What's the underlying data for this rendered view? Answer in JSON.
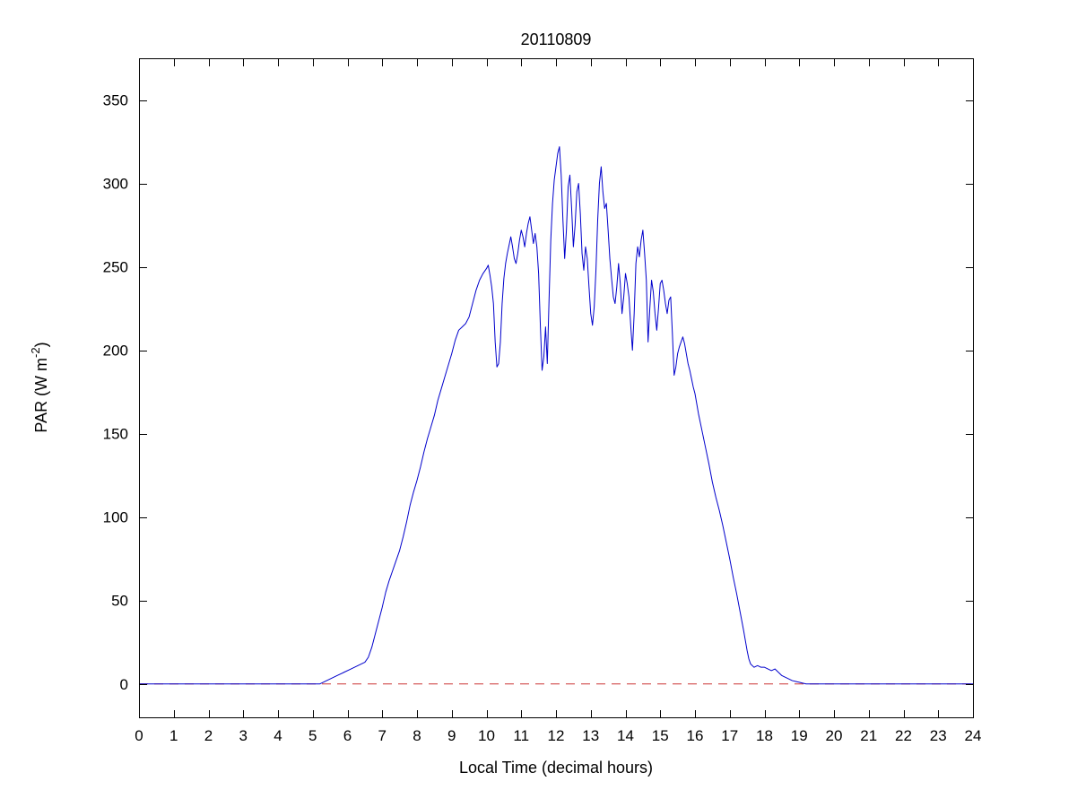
{
  "figure": {
    "title": "20110809",
    "xlabel": "Local Time (decimal hours)",
    "ylabel_prefix": "PAR (W m",
    "ylabel_sup": "-2",
    "ylabel_suffix": ")",
    "background": "#ffffff",
    "axis_color": "#000000"
  },
  "chart_data": {
    "type": "line",
    "title": "20110809",
    "xlabel": "Local Time (decimal hours)",
    "ylabel": "PAR (W m^-2)",
    "xlim": [
      0,
      24
    ],
    "ylim": [
      -20,
      375
    ],
    "x_ticks": [
      0,
      1,
      2,
      3,
      4,
      5,
      6,
      7,
      8,
      9,
      10,
      11,
      12,
      13,
      14,
      15,
      16,
      17,
      18,
      19,
      20,
      21,
      22,
      23,
      24
    ],
    "y_ticks": [
      0,
      50,
      100,
      150,
      200,
      250,
      300,
      350
    ],
    "grid": false,
    "legend": "none",
    "series": [
      {
        "name": "zero-reference",
        "color": "#cc3333",
        "style": "dashed",
        "points": [
          [
            0,
            0
          ],
          [
            24,
            0
          ]
        ]
      },
      {
        "name": "PAR",
        "color": "#0000cc",
        "style": "solid",
        "points": [
          [
            0,
            0
          ],
          [
            0.5,
            0
          ],
          [
            1,
            0
          ],
          [
            1.5,
            0
          ],
          [
            2,
            0
          ],
          [
            2.5,
            0
          ],
          [
            3,
            0
          ],
          [
            3.5,
            0
          ],
          [
            4,
            0
          ],
          [
            4.5,
            0
          ],
          [
            5,
            0
          ],
          [
            5.2,
            0
          ],
          [
            5.3,
            1
          ],
          [
            5.5,
            3
          ],
          [
            5.7,
            5
          ],
          [
            5.9,
            7
          ],
          [
            6.1,
            9
          ],
          [
            6.3,
            11
          ],
          [
            6.5,
            13
          ],
          [
            6.6,
            16
          ],
          [
            6.7,
            22
          ],
          [
            6.8,
            30
          ],
          [
            6.9,
            38
          ],
          [
            7.0,
            46
          ],
          [
            7.1,
            55
          ],
          [
            7.2,
            62
          ],
          [
            7.3,
            68
          ],
          [
            7.4,
            74
          ],
          [
            7.5,
            80
          ],
          [
            7.6,
            88
          ],
          [
            7.7,
            97
          ],
          [
            7.8,
            107
          ],
          [
            7.9,
            115
          ],
          [
            8.0,
            122
          ],
          [
            8.1,
            130
          ],
          [
            8.2,
            139
          ],
          [
            8.3,
            147
          ],
          [
            8.4,
            154
          ],
          [
            8.5,
            161
          ],
          [
            8.6,
            170
          ],
          [
            8.7,
            177
          ],
          [
            8.8,
            184
          ],
          [
            8.9,
            191
          ],
          [
            9.0,
            198
          ],
          [
            9.1,
            206
          ],
          [
            9.2,
            212
          ],
          [
            9.3,
            214
          ],
          [
            9.4,
            216
          ],
          [
            9.5,
            220
          ],
          [
            9.6,
            228
          ],
          [
            9.7,
            236
          ],
          [
            9.8,
            242
          ],
          [
            9.9,
            246
          ],
          [
            10.0,
            249
          ],
          [
            10.05,
            251
          ],
          [
            10.1,
            245
          ],
          [
            10.15,
            238
          ],
          [
            10.2,
            228
          ],
          [
            10.25,
            205
          ],
          [
            10.3,
            190
          ],
          [
            10.35,
            192
          ],
          [
            10.4,
            205
          ],
          [
            10.45,
            228
          ],
          [
            10.5,
            243
          ],
          [
            10.55,
            252
          ],
          [
            10.6,
            258
          ],
          [
            10.65,
            263
          ],
          [
            10.7,
            268
          ],
          [
            10.75,
            262
          ],
          [
            10.8,
            255
          ],
          [
            10.85,
            252
          ],
          [
            10.9,
            258
          ],
          [
            10.95,
            266
          ],
          [
            11.0,
            272
          ],
          [
            11.05,
            268
          ],
          [
            11.1,
            262
          ],
          [
            11.15,
            270
          ],
          [
            11.2,
            276
          ],
          [
            11.25,
            280
          ],
          [
            11.3,
            272
          ],
          [
            11.35,
            264
          ],
          [
            11.4,
            270
          ],
          [
            11.45,
            262
          ],
          [
            11.5,
            246
          ],
          [
            11.55,
            215
          ],
          [
            11.6,
            188
          ],
          [
            11.65,
            196
          ],
          [
            11.7,
            214
          ],
          [
            11.75,
            192
          ],
          [
            11.8,
            230
          ],
          [
            11.85,
            266
          ],
          [
            11.9,
            288
          ],
          [
            11.95,
            302
          ],
          [
            12.0,
            310
          ],
          [
            12.05,
            318
          ],
          [
            12.1,
            322
          ],
          [
            12.15,
            305
          ],
          [
            12.2,
            278
          ],
          [
            12.25,
            255
          ],
          [
            12.3,
            272
          ],
          [
            12.35,
            298
          ],
          [
            12.4,
            305
          ],
          [
            12.45,
            285
          ],
          [
            12.5,
            262
          ],
          [
            12.55,
            275
          ],
          [
            12.6,
            295
          ],
          [
            12.65,
            300
          ],
          [
            12.7,
            282
          ],
          [
            12.75,
            258
          ],
          [
            12.8,
            248
          ],
          [
            12.85,
            262
          ],
          [
            12.9,
            255
          ],
          [
            12.95,
            238
          ],
          [
            13.0,
            222
          ],
          [
            13.05,
            215
          ],
          [
            13.1,
            226
          ],
          [
            13.15,
            248
          ],
          [
            13.2,
            278
          ],
          [
            13.25,
            300
          ],
          [
            13.3,
            310
          ],
          [
            13.35,
            295
          ],
          [
            13.4,
            285
          ],
          [
            13.45,
            288
          ],
          [
            13.5,
            272
          ],
          [
            13.55,
            255
          ],
          [
            13.6,
            243
          ],
          [
            13.65,
            232
          ],
          [
            13.7,
            228
          ],
          [
            13.75,
            238
          ],
          [
            13.8,
            252
          ],
          [
            13.85,
            240
          ],
          [
            13.9,
            222
          ],
          [
            13.95,
            232
          ],
          [
            14.0,
            246
          ],
          [
            14.05,
            240
          ],
          [
            14.1,
            232
          ],
          [
            14.15,
            215
          ],
          [
            14.2,
            200
          ],
          [
            14.25,
            222
          ],
          [
            14.3,
            252
          ],
          [
            14.35,
            262
          ],
          [
            14.4,
            256
          ],
          [
            14.45,
            266
          ],
          [
            14.5,
            272
          ],
          [
            14.55,
            258
          ],
          [
            14.6,
            242
          ],
          [
            14.65,
            205
          ],
          [
            14.7,
            225
          ],
          [
            14.75,
            242
          ],
          [
            14.8,
            235
          ],
          [
            14.85,
            222
          ],
          [
            14.9,
            212
          ],
          [
            14.95,
            225
          ],
          [
            15.0,
            240
          ],
          [
            15.05,
            242
          ],
          [
            15.1,
            236
          ],
          [
            15.15,
            228
          ],
          [
            15.2,
            222
          ],
          [
            15.25,
            230
          ],
          [
            15.3,
            232
          ],
          [
            15.35,
            210
          ],
          [
            15.4,
            185
          ],
          [
            15.45,
            190
          ],
          [
            15.5,
            198
          ],
          [
            15.55,
            202
          ],
          [
            15.6,
            205
          ],
          [
            15.65,
            208
          ],
          [
            15.7,
            204
          ],
          [
            15.75,
            198
          ],
          [
            15.8,
            192
          ],
          [
            15.85,
            188
          ],
          [
            15.9,
            183
          ],
          [
            15.95,
            178
          ],
          [
            16.0,
            174
          ],
          [
            16.1,
            162
          ],
          [
            16.2,
            152
          ],
          [
            16.3,
            142
          ],
          [
            16.4,
            132
          ],
          [
            16.5,
            121
          ],
          [
            16.6,
            112
          ],
          [
            16.7,
            104
          ],
          [
            16.8,
            95
          ],
          [
            16.9,
            85
          ],
          [
            17.0,
            75
          ],
          [
            17.1,
            64
          ],
          [
            17.2,
            54
          ],
          [
            17.3,
            43
          ],
          [
            17.4,
            32
          ],
          [
            17.5,
            20
          ],
          [
            17.55,
            15
          ],
          [
            17.6,
            12
          ],
          [
            17.7,
            10
          ],
          [
            17.8,
            11
          ],
          [
            17.9,
            10
          ],
          [
            18.0,
            10
          ],
          [
            18.1,
            9
          ],
          [
            18.2,
            8
          ],
          [
            18.3,
            9
          ],
          [
            18.4,
            7
          ],
          [
            18.5,
            5
          ],
          [
            18.6,
            4
          ],
          [
            18.7,
            3
          ],
          [
            18.8,
            2
          ],
          [
            18.9,
            1.5
          ],
          [
            19.0,
            1
          ],
          [
            19.1,
            0.5
          ],
          [
            19.2,
            0
          ],
          [
            19.3,
            0
          ],
          [
            19.5,
            0
          ],
          [
            20,
            0
          ],
          [
            20.5,
            0
          ],
          [
            21,
            0
          ],
          [
            21.5,
            0
          ],
          [
            22,
            0
          ],
          [
            22.5,
            0
          ],
          [
            23,
            0
          ],
          [
            23.5,
            0
          ],
          [
            24,
            0
          ]
        ]
      }
    ]
  }
}
